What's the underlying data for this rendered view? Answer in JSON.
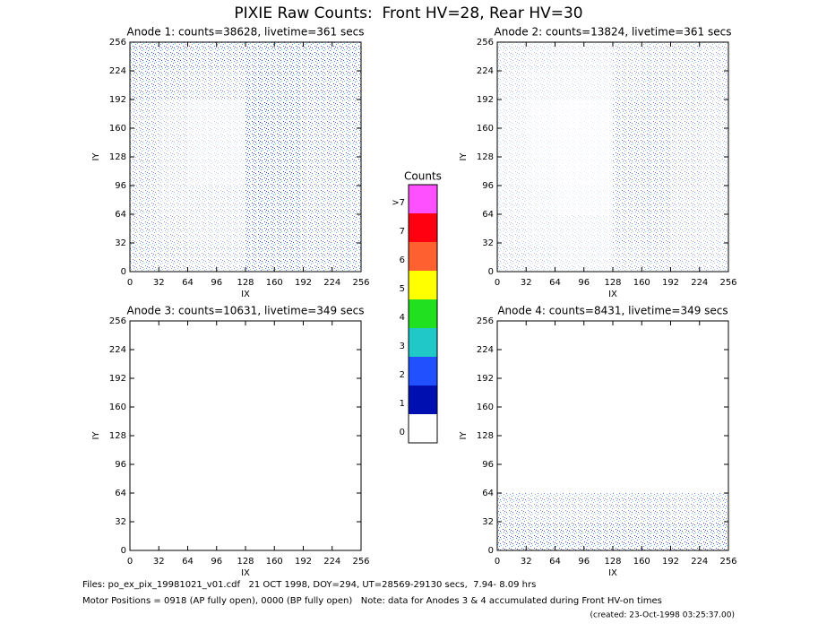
{
  "title": "PIXIE Raw Counts:  Front HV=28, Rear HV=30",
  "colorbar": {
    "title": "Counts",
    "labels": [
      "0",
      "1",
      "2",
      "3",
      "4",
      "5",
      "6",
      "7",
      ">7"
    ],
    "colors": [
      "#ffffff",
      "#0010b0",
      "#2050ff",
      "#20c8c8",
      "#20e020",
      "#ffff00",
      "#ff6030",
      "#ff0010",
      "#ff50ff"
    ]
  },
  "footer": [
    "Files: po_ex_pix_19981021_v01.cdf   21 OCT 1998, DOY=294, UT=28569-29130 secs,  7.94- 8.09 hrs",
    "Motor Positions = 0918 (AP fully open), 0000 (BP fully open)   Note: data for Anodes 3 & 4 accumulated during Front HV-on times",
    "(created: 23-Oct-1998 03:25:37.00)"
  ],
  "chart_data": [
    {
      "type": "heatmap",
      "title": "Anode 1: counts=38628, livetime=361 secs",
      "xlabel": "IX",
      "ylabel": "IY",
      "xlim": [
        0,
        256
      ],
      "ylim": [
        0,
        256
      ],
      "xticks": [
        0,
        32,
        64,
        96,
        128,
        160,
        192,
        224,
        256
      ],
      "yticks": [
        0,
        32,
        64,
        96,
        128,
        160,
        192,
        224,
        256
      ],
      "z": [
        [
          0.5,
          0.4,
          0.3,
          0.3,
          1.0,
          1.0,
          0.7,
          0.7
        ],
        [
          0.4,
          0.3,
          0.2,
          0.2,
          1.2,
          1.2,
          0.7,
          0.6
        ],
        [
          0.4,
          0.2,
          0.2,
          0.2,
          1.4,
          1.3,
          0.6,
          0.6
        ],
        [
          0.4,
          0.2,
          0.1,
          0.1,
          1.6,
          1.6,
          0.6,
          0.7
        ],
        [
          0.4,
          0.2,
          0.1,
          0.1,
          1.8,
          1.6,
          0.7,
          0.7
        ],
        [
          0.4,
          0.2,
          0.1,
          0.1,
          1.8,
          1.6,
          0.8,
          0.8
        ],
        [
          0.8,
          0.6,
          0.4,
          0.4,
          1.4,
          1.5,
          1.0,
          1.0
        ],
        [
          1.2,
          1.0,
          0.8,
          0.8,
          1.2,
          1.4,
          1.2,
          1.2
        ]
      ]
    },
    {
      "type": "heatmap",
      "title": "Anode 2: counts=13824, livetime=361 secs",
      "xlabel": "IX",
      "ylabel": "IY",
      "xlim": [
        0,
        256
      ],
      "ylim": [
        0,
        256
      ],
      "xticks": [
        0,
        32,
        64,
        96,
        128,
        160,
        192,
        224,
        256
      ],
      "yticks": [
        0,
        32,
        64,
        96,
        128,
        160,
        192,
        224,
        256
      ],
      "z": [
        [
          0.2,
          0.15,
          0.1,
          0.1,
          0.3,
          0.35,
          0.25,
          0.25
        ],
        [
          0.15,
          0.1,
          0.08,
          0.08,
          0.4,
          0.45,
          0.25,
          0.2
        ],
        [
          0.12,
          0.08,
          0.05,
          0.05,
          0.45,
          0.5,
          0.25,
          0.2
        ],
        [
          0.1,
          0.06,
          0.04,
          0.04,
          0.5,
          0.55,
          0.3,
          0.2
        ],
        [
          0.1,
          0.05,
          0.04,
          0.04,
          0.55,
          0.55,
          0.3,
          0.2
        ],
        [
          0.1,
          0.05,
          0.03,
          0.04,
          0.5,
          0.5,
          0.35,
          0.25
        ],
        [
          0.15,
          0.1,
          0.08,
          0.08,
          0.35,
          0.45,
          0.4,
          0.3
        ],
        [
          0.2,
          0.15,
          0.12,
          0.12,
          0.3,
          0.35,
          0.35,
          0.3
        ]
      ]
    },
    {
      "type": "heatmap",
      "title": "Anode 3: counts=10631, livetime=349 secs",
      "xlabel": "IX",
      "ylabel": "IY",
      "xlim": [
        0,
        256
      ],
      "ylim": [
        0,
        256
      ],
      "xticks": [
        0,
        32,
        64,
        96,
        128,
        160,
        192,
        224,
        256
      ],
      "yticks": [
        0,
        32,
        64,
        96,
        128,
        160,
        192,
        224,
        256
      ],
      "z": [
        [
          0,
          0,
          0,
          0,
          0,
          0,
          0,
          0
        ],
        [
          0,
          0,
          0,
          0,
          0,
          0,
          0,
          0
        ],
        [
          0,
          0,
          0,
          0,
          0,
          0,
          0,
          0
        ],
        [
          0,
          0,
          0,
          0,
          0,
          0,
          0,
          0
        ],
        [
          0,
          0,
          0,
          0,
          0,
          0,
          0,
          0
        ],
        [
          0,
          0,
          0,
          0,
          0,
          0,
          0,
          0
        ],
        [
          0,
          0,
          0,
          0,
          0,
          0,
          0,
          0
        ],
        [
          0,
          0,
          0,
          0,
          0,
          0,
          0,
          0
        ]
      ]
    },
    {
      "type": "heatmap",
      "title": "Anode 4: counts=8431, livetime=349 secs",
      "xlabel": "IX",
      "ylabel": "IY",
      "xlim": [
        0,
        256
      ],
      "ylim": [
        0,
        256
      ],
      "xticks": [
        0,
        32,
        64,
        96,
        128,
        160,
        192,
        224,
        256
      ],
      "yticks": [
        0,
        32,
        64,
        96,
        128,
        160,
        192,
        224,
        256
      ],
      "z": [
        [
          1.0,
          0.9,
          0.9,
          0.9,
          1.0,
          1.0,
          0.9,
          1.1
        ],
        [
          0.5,
          0.4,
          0.4,
          0.4,
          0.5,
          0.5,
          0.4,
          0.5
        ],
        [
          0,
          0,
          0,
          0,
          0,
          0,
          0,
          0
        ],
        [
          0,
          0,
          0,
          0,
          0,
          0,
          0,
          0
        ],
        [
          0,
          0,
          0,
          0,
          0,
          0,
          0,
          0
        ],
        [
          0,
          0,
          0,
          0,
          0,
          0,
          0,
          0
        ],
        [
          0,
          0,
          0,
          0,
          0,
          0,
          0,
          0
        ],
        [
          0,
          0,
          0,
          0,
          0,
          0,
          0,
          0
        ]
      ]
    }
  ]
}
